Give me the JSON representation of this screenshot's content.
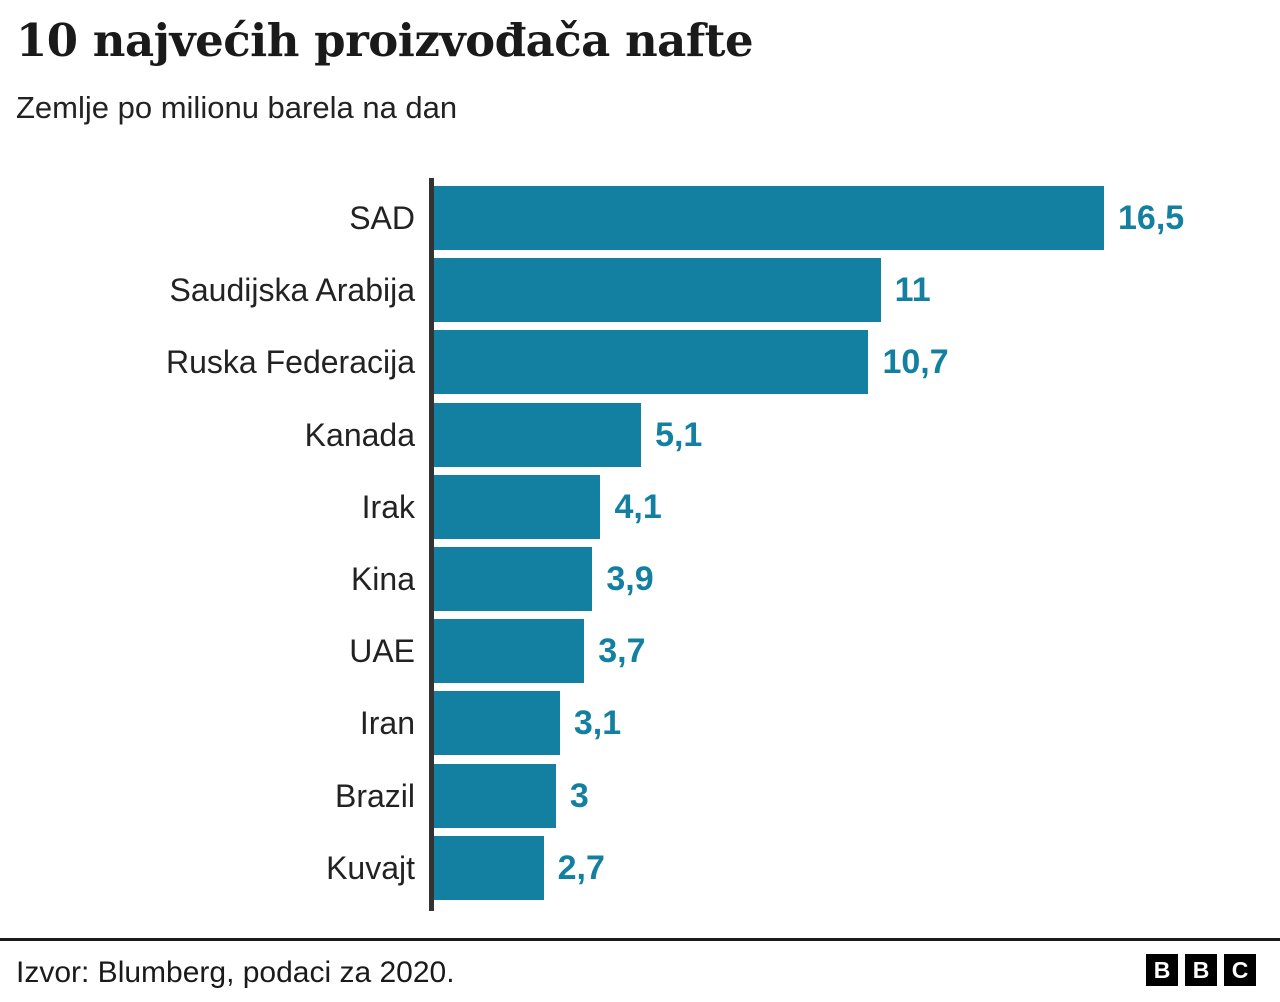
{
  "header": {
    "title": "10 najvećih proizvođača nafte",
    "subtitle": "Zemlje po milionu barela na dan"
  },
  "chart_data": {
    "type": "bar",
    "orientation": "horizontal",
    "title": "10 najvećih proizvođača nafte",
    "subtitle": "Zemlje po milionu barela na dan",
    "categories": [
      "SAD",
      "Saudijska Arabija",
      "Ruska Federacija",
      "Kanada",
      "Irak",
      "Kina",
      "UAE",
      "Iran",
      "Brazil",
      "Kuvajt"
    ],
    "values": [
      16.5,
      11,
      10.7,
      5.1,
      4.1,
      3.9,
      3.7,
      3.1,
      3,
      2.7
    ],
    "value_labels": [
      "16,5",
      "11",
      "10,7",
      "5,1",
      "4,1",
      "3,9",
      "3,7",
      "3,1",
      "3",
      "2,7"
    ],
    "unit": "milion barela na dan",
    "xlim": [
      0,
      16.5
    ],
    "grid": false,
    "legend": false,
    "bar_color": "#1380a1",
    "value_label_color": "#1380a1",
    "axis_color": "#333333"
  },
  "footer": {
    "source": "Izvor: Blumberg, podaci za 2020.",
    "logo_letters": [
      "B",
      "B",
      "C"
    ]
  }
}
